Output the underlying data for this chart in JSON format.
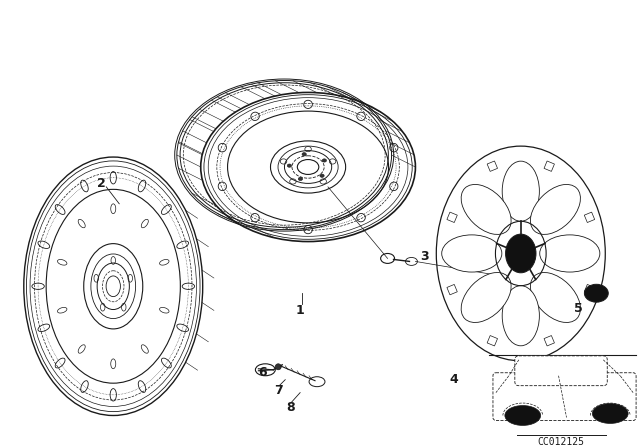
{
  "bg_color": "#ffffff",
  "line_color": "#1a1a1a",
  "code_text": "CC012125"
}
